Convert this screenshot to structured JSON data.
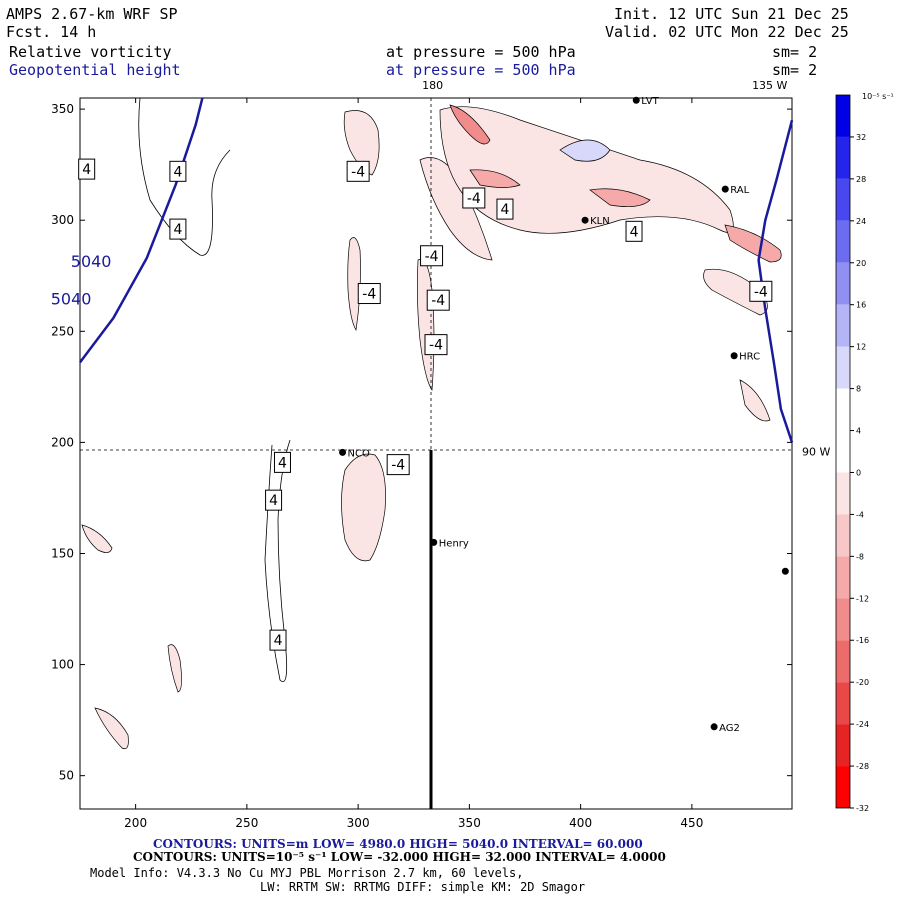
{
  "header": {
    "model_line": "AMPS 2.67-km WRF SP",
    "fcst_line": "Fcst.   14 h",
    "init_line": "Init. 12 UTC Sun 21 Dec 25",
    "valid_line": "Valid. 02 UTC Mon 22 Dec 25",
    "field1_name": "Relative vorticity",
    "field1_level": "at pressure =  500 hPa",
    "field1_sm": "sm= 2",
    "field2_name": "Geopotential height",
    "field2_level": "at pressure =  500 hPa",
    "field2_sm": "sm= 2"
  },
  "footer": {
    "line1": "CONTOURS:  UNITS=m  LOW=  4980.0      HIGH=  5040.0      INTERVAL=   60.000",
    "line2": "CONTOURS:  UNITS=10⁻⁵ s⁻¹  LOW= -32.000      HIGH=  32.000      INTERVAL=   4.0000",
    "line3": "Model Info: V4.3.3   No Cu   MYJ PBL  Morrison            2.7 km,  60 levels,",
    "line4": "LW: RRTM SW: RRTMG   DIFF: simple KM: 2D Smagor"
  },
  "chart_data": {
    "type": "contour-map",
    "title": "Relative vorticity and Geopotential height at 500 hPa",
    "xlim": [
      175,
      495
    ],
    "ylim": [
      35,
      355
    ],
    "xticks": [
      200,
      250,
      300,
      350,
      400,
      450
    ],
    "yticks": [
      50,
      100,
      150,
      200,
      250,
      300,
      350
    ],
    "x_tick_labels": [
      "200",
      "250",
      "300",
      "350",
      "400",
      "450"
    ],
    "y_tick_labels": [
      "50",
      "100",
      "150",
      "200",
      "250",
      "300",
      "350"
    ],
    "meridian_labels": [
      {
        "text": "180",
        "x": 333.5,
        "y": 355,
        "edge": "top"
      },
      {
        "text": "135 W",
        "x": 485,
        "y": 355,
        "edge": "top"
      },
      {
        "text": "90 W",
        "x": 495,
        "y": 196,
        "edge": "right"
      }
    ],
    "reference_lines": {
      "vertical_dashed_x": 333.5,
      "horizontal_dashed_y": 196,
      "vertical_solid": {
        "x": 333.5,
        "y0": 35,
        "y1": 196
      }
    },
    "stations": [
      {
        "name": "NCO",
        "x": 293,
        "y": 195.5
      },
      {
        "name": "Henry",
        "x": 334,
        "y": 155
      },
      {
        "name": "AG2",
        "x": 460,
        "y": 72
      },
      {
        "name": "RAL",
        "x": 465,
        "y": 314
      },
      {
        "name": "KLN",
        "x": 402,
        "y": 300
      },
      {
        "name": "LVT",
        "x": 425,
        "y": 354
      },
      {
        "name": "HRC",
        "x": 469,
        "y": 239
      },
      {
        "name": "",
        "x": 492,
        "y": 142
      }
    ],
    "height_contours": [
      {
        "value": 5040,
        "label": "5040",
        "points": [
          [
            175,
            236
          ],
          [
            190,
            256
          ],
          [
            205,
            283
          ],
          [
            218,
            316
          ],
          [
            227,
            343
          ],
          [
            230,
            355
          ]
        ]
      },
      {
        "value": 4980,
        "label": "",
        "points": [
          [
            495,
            345
          ],
          [
            488,
            318
          ],
          [
            483,
            300
          ],
          [
            480,
            282
          ],
          [
            483,
            260
          ],
          [
            487,
            235
          ],
          [
            490,
            215
          ],
          [
            495,
            200
          ]
        ]
      }
    ],
    "height_labels": [
      {
        "text": "5040",
        "x": 180,
        "y": 279
      },
      {
        "text": "5040",
        "x": 171,
        "y": 262
      }
    ],
    "vorticity_labels": [
      {
        "text": "4",
        "x": 178,
        "y": 323
      },
      {
        "text": "4",
        "x": 219,
        "y": 322
      },
      {
        "text": "4",
        "x": 219,
        "y": 296
      },
      {
        "text": "-4",
        "x": 300,
        "y": 322
      },
      {
        "text": "-4",
        "x": 305,
        "y": 267
      },
      {
        "text": "-4",
        "x": 333,
        "y": 284
      },
      {
        "text": "-4",
        "x": 336,
        "y": 264
      },
      {
        "text": "-4",
        "x": 335,
        "y": 244
      },
      {
        "text": "-4",
        "x": 352,
        "y": 310
      },
      {
        "text": "4",
        "x": 366,
        "y": 305
      },
      {
        "text": "4",
        "x": 424,
        "y": 295
      },
      {
        "text": "-4",
        "x": 481,
        "y": 268
      },
      {
        "text": "-4",
        "x": 318,
        "y": 190
      },
      {
        "text": "4",
        "x": 266,
        "y": 191
      },
      {
        "text": "4",
        "x": 262,
        "y": 174
      },
      {
        "text": "4",
        "x": 264,
        "y": 111
      }
    ],
    "colorbar": {
      "units": "10⁻⁵ s⁻¹",
      "levels": [
        32,
        28,
        24,
        20,
        16,
        12,
        8,
        4,
        0,
        -4,
        -8,
        -12,
        -16,
        -20,
        -24,
        -28,
        -32
      ],
      "level_labels": [
        "32",
        "28",
        "24",
        "20",
        "16",
        "12",
        "8",
        "4",
        "0",
        "-4",
        "-8",
        "-12",
        "-16",
        "-20",
        "-24",
        "-28",
        "-32"
      ],
      "colors": [
        "#0000e6",
        "#2424ec",
        "#4848ee",
        "#6c6cf0",
        "#9090f2",
        "#b4b4f6",
        "#d8d8fa",
        "#ffffff",
        "#ffffff",
        "#fbe4e4",
        "#f8c8c8",
        "#f5a9a9",
        "#f08c8c",
        "#ec6c6c",
        "#e84848",
        "#e62424",
        "#ff0000"
      ]
    }
  }
}
